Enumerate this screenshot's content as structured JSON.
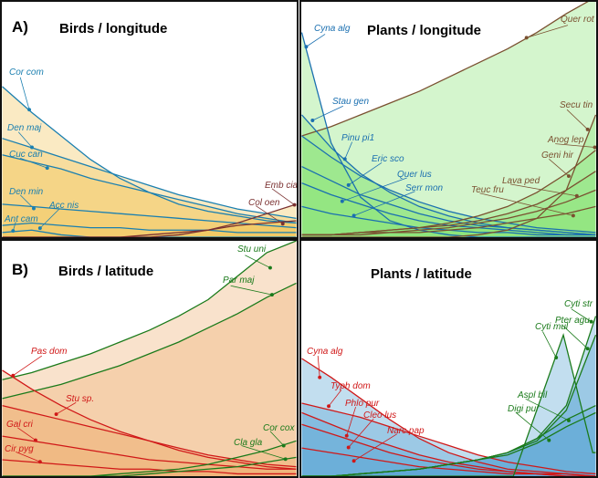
{
  "chart_data": [
    {
      "type": "area",
      "panel_tag": "A)",
      "title": "Birds / longitude",
      "xlabel": "",
      "ylabel": "",
      "ylim": [
        0,
        1
      ],
      "xlim": [
        0,
        1
      ],
      "grid": false,
      "fill": "#f2c862",
      "series": [
        {
          "name": "Cor com",
          "color": "#1a7fb0",
          "y": [
            0.64,
            0.53,
            0.43,
            0.33,
            0.25,
            0.19,
            0.14,
            0.11,
            0.09,
            0.07,
            0.06
          ]
        },
        {
          "name": "Den maj",
          "color": "#1a7fb0",
          "y": [
            0.42,
            0.38,
            0.34,
            0.3,
            0.26,
            0.22,
            0.18,
            0.15,
            0.12,
            0.1,
            0.08
          ]
        },
        {
          "name": "Cuc can",
          "color": "#1a7fb0",
          "y": [
            0.35,
            0.32,
            0.29,
            0.25,
            0.22,
            0.19,
            0.16,
            0.13,
            0.1,
            0.08,
            0.06
          ]
        },
        {
          "name": "Den min",
          "color": "#1a7fb0",
          "y": [
            0.14,
            0.13,
            0.12,
            0.11,
            0.1,
            0.09,
            0.08,
            0.07,
            0.06,
            0.05,
            0.04
          ]
        },
        {
          "name": "Acc nis",
          "color": "#1a7fb0",
          "y": [
            0.05,
            0.06,
            0.05,
            0.04,
            0.04,
            0.03,
            0.03,
            0.03,
            0.02,
            0.02,
            0.02
          ]
        },
        {
          "name": "Ant cam",
          "color": "#1a7fb0",
          "y": [
            0.02,
            0.03,
            0.01,
            0,
            0,
            0,
            0,
            0,
            0,
            0,
            0
          ]
        },
        {
          "name": "Emb cia",
          "color": "#7a3030",
          "y": [
            0,
            0,
            0,
            0,
            0,
            0,
            0.01,
            0.03,
            0.06,
            0.1,
            0.14
          ]
        },
        {
          "name": "Col oen",
          "color": "#7a3030",
          "y": [
            0,
            0,
            0,
            0,
            0,
            0.01,
            0.02,
            0.03,
            0.05,
            0.06,
            0.07
          ]
        }
      ]
    },
    {
      "type": "area",
      "panel_tag": "",
      "title": "Plants / longitude",
      "xlabel": "",
      "ylabel": "",
      "ylim": [
        0,
        1
      ],
      "xlim": [
        0,
        1
      ],
      "grid": false,
      "fill": "#8ee47c",
      "series": [
        {
          "name": "Quer rot",
          "color": "#7a5030",
          "y": [
            0.43,
            0.47,
            0.52,
            0.57,
            0.62,
            0.68,
            0.74,
            0.8,
            0.87,
            0.95,
            1.02
          ]
        },
        {
          "name": "Cyna alg",
          "color": "#1a6fb0",
          "y": [
            0.87,
            0.4,
            0.17,
            0.07,
            0.03,
            0.01,
            0,
            0,
            0,
            0,
            0
          ]
        },
        {
          "name": "Stau gen",
          "color": "#1a6fb0",
          "y": [
            0.52,
            0.38,
            0.27,
            0.19,
            0.13,
            0.09,
            0.06,
            0.04,
            0.03,
            0.02,
            0.01
          ]
        },
        {
          "name": "Pinu pi1",
          "color": "#1a6fb0",
          "y": [
            0.43,
            0.34,
            0.26,
            0.2,
            0.15,
            0.11,
            0.08,
            0.06,
            0.04,
            0.03,
            0.02
          ]
        },
        {
          "name": "Eric sco",
          "color": "#1a6fb0",
          "y": [
            0.3,
            0.24,
            0.18,
            0.14,
            0.1,
            0.07,
            0.05,
            0.04,
            0.03,
            0.02,
            0.01
          ]
        },
        {
          "name": "Quer lus",
          "color": "#1a6fb0",
          "y": [
            0.23,
            0.18,
            0.14,
            0.1,
            0.07,
            0.05,
            0.04,
            0.03,
            0.02,
            0.01,
            0.01
          ]
        },
        {
          "name": "Serr mon",
          "color": "#1a6fb0",
          "y": [
            0.13,
            0.1,
            0.08,
            0.06,
            0.04,
            0.03,
            0.02,
            0.02,
            0.01,
            0.01,
            0.01
          ]
        },
        {
          "name": "Secu tin",
          "color": "#7a5030",
          "y": [
            0,
            0,
            0,
            0,
            0,
            0,
            0.01,
            0.03,
            0.08,
            0.2,
            0.52
          ]
        },
        {
          "name": "Anog lep",
          "color": "#7a5030",
          "y": [
            0.01,
            0.01,
            0.02,
            0.03,
            0.04,
            0.06,
            0.09,
            0.13,
            0.19,
            0.27,
            0.37
          ]
        },
        {
          "name": "Geni hir",
          "color": "#7a5030",
          "y": [
            0.01,
            0.01,
            0.02,
            0.03,
            0.04,
            0.05,
            0.07,
            0.1,
            0.14,
            0.2,
            0.28
          ]
        },
        {
          "name": "Lava ped",
          "color": "#7a5030",
          "y": [
            0.01,
            0.01,
            0.02,
            0.02,
            0.03,
            0.04,
            0.06,
            0.08,
            0.11,
            0.15,
            0.2
          ]
        },
        {
          "name": "Teuc fru",
          "color": "#7a5030",
          "y": [
            0.01,
            0.01,
            0.01,
            0.02,
            0.02,
            0.03,
            0.04,
            0.06,
            0.08,
            0.1,
            0.13
          ]
        }
      ]
    },
    {
      "type": "area",
      "panel_tag": "B)",
      "title": "Birds / latitude",
      "xlabel": "",
      "ylabel": "",
      "ylim": [
        0,
        1
      ],
      "xlim": [
        0,
        1
      ],
      "grid": false,
      "fill": "#eeb478",
      "series": [
        {
          "name": "Stu uni",
          "color": "#1a7a1a",
          "y": [
            0.41,
            0.44,
            0.48,
            0.52,
            0.57,
            0.62,
            0.68,
            0.75,
            0.85,
            0.95,
            1.0
          ]
        },
        {
          "name": "Par maj",
          "color": "#1a7a1a",
          "y": [
            0.33,
            0.36,
            0.39,
            0.43,
            0.47,
            0.52,
            0.57,
            0.63,
            0.69,
            0.76,
            0.82
          ]
        },
        {
          "name": "Pas dom",
          "color": "#d01818",
          "y": [
            0.45,
            0.37,
            0.3,
            0.24,
            0.19,
            0.15,
            0.11,
            0.08,
            0.06,
            0.04,
            0.03
          ]
        },
        {
          "name": "Stu sp.",
          "color": "#d01818",
          "y": [
            0.3,
            0.27,
            0.24,
            0.21,
            0.18,
            0.15,
            0.12,
            0.09,
            0.07,
            0.05,
            0.04
          ]
        },
        {
          "name": "Gal cri",
          "color": "#d01818",
          "y": [
            0.17,
            0.15,
            0.13,
            0.11,
            0.09,
            0.07,
            0.06,
            0.05,
            0.04,
            0.03,
            0.03
          ]
        },
        {
          "name": "Cir pyg",
          "color": "#d01818",
          "y": [
            0.07,
            0.06,
            0.05,
            0.04,
            0.03,
            0.03,
            0.02,
            0.02,
            0.01,
            0.01,
            0.01
          ]
        },
        {
          "name": "Cor cox",
          "color": "#1a7a1a",
          "y": [
            0,
            0,
            0,
            0,
            0.01,
            0.02,
            0.03,
            0.05,
            0.08,
            0.11,
            0.15
          ]
        },
        {
          "name": "Cla gla",
          "color": "#1a7a1a",
          "y": [
            0,
            0,
            0,
            0,
            0,
            0.01,
            0.02,
            0.03,
            0.04,
            0.06,
            0.08
          ]
        }
      ]
    },
    {
      "type": "area",
      "panel_tag": "",
      "title": "Plants / latitude",
      "xlabel": "",
      "ylabel": "",
      "ylim": [
        0,
        1
      ],
      "xlim": [
        0,
        1
      ],
      "grid": false,
      "fill": "#5ea8d4",
      "series": [
        {
          "name": "Cyna alg",
          "color": "#d01818",
          "y": [
            0.5,
            0.42,
            0.33,
            0.24,
            0.16,
            0.1,
            0.06,
            0.03,
            0.02,
            0.01,
            0
          ]
        },
        {
          "name": "Typh dom",
          "color": "#d01818",
          "y": [
            0.31,
            0.28,
            0.25,
            0.21,
            0.17,
            0.13,
            0.09,
            0.06,
            0.04,
            0.02,
            0.01
          ]
        },
        {
          "name": "Phlo pur",
          "color": "#d01818",
          "y": [
            0.27,
            0.22,
            0.17,
            0.13,
            0.09,
            0.06,
            0.04,
            0.02,
            0.01,
            0.01,
            0
          ]
        },
        {
          "name": "Cleo lus",
          "color": "#d01818",
          "y": [
            0.22,
            0.18,
            0.14,
            0.1,
            0.07,
            0.05,
            0.03,
            0.02,
            0.01,
            0,
            0
          ]
        },
        {
          "name": "Narc pap",
          "color": "#d01818",
          "y": [
            0.12,
            0.1,
            0.08,
            0.06,
            0.04,
            0.03,
            0.02,
            0.01,
            0.01,
            0,
            0
          ]
        },
        {
          "name": "Cyti mul",
          "color": "#1a7a1a",
          "x": [
            0,
            0.72,
            0.89,
            0.99,
            1
          ],
          "y": [
            0,
            0,
            0.6,
            0.1,
            0.1
          ]
        },
        {
          "name": "Cyti str",
          "color": "#1a7a1a",
          "y": [
            0,
            0,
            0.01,
            0.02,
            0.03,
            0.05,
            0.07,
            0.1,
            0.16,
            0.3,
            0.68
          ]
        },
        {
          "name": "Pter agu",
          "color": "#1a7a1a",
          "y": [
            0,
            0,
            0.01,
            0.02,
            0.03,
            0.05,
            0.07,
            0.1,
            0.15,
            0.28,
            0.6
          ]
        },
        {
          "name": "Aspl bil",
          "color": "#1a7a1a",
          "y": [
            0,
            0,
            0.01,
            0.02,
            0.03,
            0.05,
            0.07,
            0.1,
            0.16,
            0.24,
            0.3
          ]
        },
        {
          "name": "Digi pur",
          "color": "#1a7a1a",
          "y": [
            0,
            0,
            0.01,
            0.02,
            0.03,
            0.05,
            0.07,
            0.09,
            0.14,
            0.21,
            0.27
          ]
        }
      ]
    }
  ]
}
